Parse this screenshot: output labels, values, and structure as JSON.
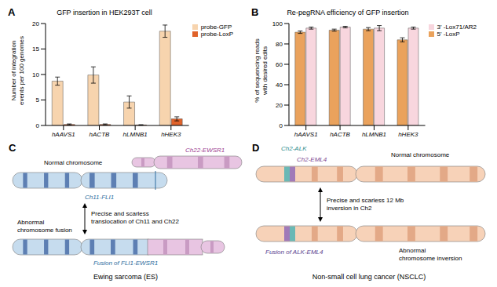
{
  "chart_data": [
    {
      "panel": "A",
      "type": "bar",
      "title": "GFP insertion in HEK293T cell",
      "ylabel": "Number of integration events per 100 genomes",
      "categories": [
        "hAAVS1",
        "hACTB",
        "hLMNB1",
        "hHEK3"
      ],
      "series": [
        {
          "name": "probe-GFP",
          "color": "#f7d4ae",
          "values": [
            8.7,
            9.9,
            4.6,
            18.5
          ],
          "errors": [
            0.8,
            1.6,
            1.2,
            1.2
          ]
        },
        {
          "name": "probe-LoxP",
          "color": "#e0622a",
          "values": [
            0.2,
            0.2,
            0.1,
            1.3
          ],
          "errors": [
            0.1,
            0.1,
            0.05,
            0.4
          ]
        }
      ],
      "ylim": [
        0,
        20
      ],
      "yticks": [
        0,
        5,
        10,
        15,
        20
      ],
      "legend": "right"
    },
    {
      "panel": "B",
      "type": "bar",
      "title": "Re-pegRNA efficiency of GFP insertion",
      "ylabel": "% of sequencing reads with desired edits",
      "categories": [
        "hAAVS1",
        "hACTB",
        "hLMNB1",
        "hHEK3"
      ],
      "series": [
        {
          "name": "5' -LoxP",
          "color": "#eaa25c",
          "values": [
            91.5,
            93.5,
            94.5,
            84
          ],
          "errors": [
            1.2,
            1.0,
            1.5,
            2.0
          ]
        },
        {
          "name": "3' -Lox71/AR2",
          "color": "#f8d6de",
          "values": [
            95.5,
            96.5,
            95.5,
            95.5
          ],
          "errors": [
            1.0,
            0.8,
            2.5,
            1.0
          ]
        }
      ],
      "ylim": [
        0,
        100
      ],
      "yticks": [
        0,
        20,
        40,
        60,
        80,
        100
      ],
      "legend": "right"
    }
  ],
  "diagrams": [
    {
      "panel": "C",
      "title": "Ewing sarcoma (ES)",
      "normal_label": "Normal chromosome",
      "gene_labels": [
        "Ch22-EWSR1",
        "Ch11-FLI1"
      ],
      "event": [
        "Precise and scarless",
        "translocation of Ch11 and Ch22"
      ],
      "abnormal_label": [
        "Abnormal",
        "chromosome fusion"
      ],
      "fusion_label": "Fusion of FLI1-EWSR1"
    },
    {
      "panel": "D",
      "title": "Non-small cell lung cancer (NSCLC)",
      "normal_label": "Normal chromosome",
      "gene_labels": [
        "Ch2-ALK",
        "Ch2-EML4"
      ],
      "event": [
        "Precise and scarless 12 Mb",
        "inversion in Ch2"
      ],
      "abnormal_label": [
        "Abnormal",
        "chromosome inversion"
      ],
      "fusion_label": "Fusion of ALK-EML4"
    }
  ]
}
